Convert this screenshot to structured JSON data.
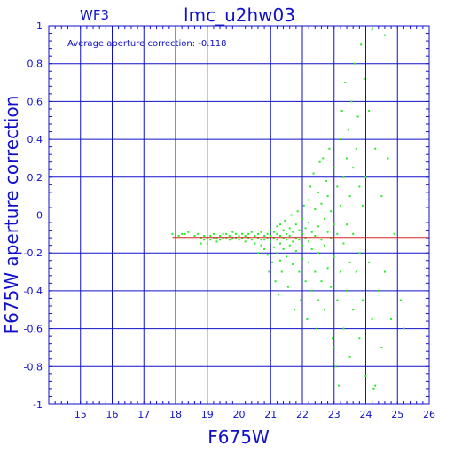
{
  "chart_data": {
    "type": "scatter",
    "title": "lmc_u2hw03",
    "subtitle": "WF3",
    "annotation": "Average aperture correction: -0.118",
    "xlabel": "F675W",
    "ylabel": "F675W aperture correction",
    "xlim": [
      14,
      26
    ],
    "ylim": [
      -1,
      1
    ],
    "xticks": [
      "15",
      "16",
      "17",
      "18",
      "19",
      "20",
      "21",
      "22",
      "23",
      "24",
      "25",
      "26"
    ],
    "yticks": [
      "1",
      "0.8",
      "0.6",
      "0.4",
      "0.2",
      "0",
      "-0.2",
      "-0.4",
      "-0.6",
      "-0.8",
      "-1"
    ],
    "grid": true,
    "reference_line": -0.118,
    "colors": {
      "axis": "#1010c8",
      "grid": "#1010c8",
      "points": "#22ee22",
      "reference": "#dd2222"
    },
    "points": [
      [
        17.9,
        -0.1
      ],
      [
        18.0,
        -0.09
      ],
      [
        18.1,
        -0.11
      ],
      [
        18.2,
        -0.1
      ],
      [
        18.3,
        -0.1
      ],
      [
        18.4,
        -0.09
      ],
      [
        18.6,
        -0.11
      ],
      [
        18.7,
        -0.1
      ],
      [
        18.8,
        -0.12
      ],
      [
        18.8,
        -0.15
      ],
      [
        18.9,
        -0.11
      ],
      [
        18.9,
        -0.13
      ],
      [
        19.0,
        -0.12
      ],
      [
        19.0,
        -0.15
      ],
      [
        19.1,
        -0.11
      ],
      [
        19.1,
        -0.13
      ],
      [
        19.2,
        -0.1
      ],
      [
        19.2,
        -0.12
      ],
      [
        19.3,
        -0.12
      ],
      [
        19.3,
        -0.14
      ],
      [
        19.4,
        -0.11
      ],
      [
        19.4,
        -0.13
      ],
      [
        19.5,
        -0.1
      ],
      [
        19.5,
        -0.12
      ],
      [
        19.6,
        -0.12
      ],
      [
        19.6,
        -0.1
      ],
      [
        19.7,
        -0.11
      ],
      [
        19.7,
        -0.13
      ],
      [
        19.8,
        -0.09
      ],
      [
        19.8,
        -0.12
      ],
      [
        19.9,
        -0.1
      ],
      [
        19.9,
        -0.12
      ],
      [
        20.0,
        -0.11
      ],
      [
        20.0,
        -0.13
      ],
      [
        20.1,
        -0.1
      ],
      [
        20.1,
        -0.12
      ],
      [
        20.2,
        -0.11
      ],
      [
        20.2,
        -0.14
      ],
      [
        20.3,
        -0.1
      ],
      [
        20.3,
        -0.12
      ],
      [
        20.4,
        -0.09
      ],
      [
        20.4,
        -0.13
      ],
      [
        20.5,
        -0.11
      ],
      [
        20.5,
        -0.15
      ],
      [
        20.6,
        -0.1
      ],
      [
        20.6,
        -0.12
      ],
      [
        20.6,
        -0.2
      ],
      [
        20.7,
        -0.13
      ],
      [
        20.7,
        -0.09
      ],
      [
        20.7,
        -0.16
      ],
      [
        20.8,
        -0.11
      ],
      [
        20.8,
        -0.13
      ],
      [
        20.8,
        -0.18
      ],
      [
        20.9,
        -0.1
      ],
      [
        20.9,
        -0.12
      ],
      [
        20.9,
        -0.21
      ],
      [
        20.95,
        -0.3
      ],
      [
        21.0,
        -0.08
      ],
      [
        21.0,
        -0.11
      ],
      [
        21.0,
        -0.14
      ],
      [
        21.05,
        -0.25
      ],
      [
        21.1,
        -0.09
      ],
      [
        21.1,
        -0.12
      ],
      [
        21.1,
        -0.17
      ],
      [
        21.15,
        -0.35
      ],
      [
        21.2,
        -0.06
      ],
      [
        21.2,
        -0.1
      ],
      [
        21.2,
        -0.13
      ],
      [
        21.2,
        -0.2
      ],
      [
        21.25,
        -0.42
      ],
      [
        21.3,
        -0.05
      ],
      [
        21.3,
        -0.11
      ],
      [
        21.3,
        -0.15
      ],
      [
        21.3,
        -0.24
      ],
      [
        21.35,
        -0.3
      ],
      [
        21.4,
        -0.08
      ],
      [
        21.4,
        -0.12
      ],
      [
        21.4,
        -0.18
      ],
      [
        21.45,
        -0.03
      ],
      [
        21.5,
        -0.1
      ],
      [
        21.5,
        -0.13
      ],
      [
        21.5,
        -0.22
      ],
      [
        21.55,
        -0.38
      ],
      [
        21.6,
        -0.07
      ],
      [
        21.6,
        -0.11
      ],
      [
        21.6,
        -0.16
      ],
      [
        21.65,
        0.0
      ],
      [
        21.7,
        -0.09
      ],
      [
        21.7,
        -0.14
      ],
      [
        21.7,
        -0.26
      ],
      [
        21.75,
        -0.5
      ],
      [
        21.8,
        -0.05
      ],
      [
        21.8,
        -0.12
      ],
      [
        21.8,
        -0.19
      ],
      [
        21.85,
        0.02
      ],
      [
        21.9,
        -0.08
      ],
      [
        21.9,
        -0.13
      ],
      [
        21.9,
        -0.3
      ],
      [
        21.95,
        -0.45
      ],
      [
        22.0,
        -0.02
      ],
      [
        22.0,
        -0.1
      ],
      [
        22.0,
        -0.16
      ],
      [
        22.0,
        -0.23
      ],
      [
        22.05,
        0.05
      ],
      [
        22.1,
        -0.07
      ],
      [
        22.1,
        -0.12
      ],
      [
        22.1,
        -0.35
      ],
      [
        22.15,
        -0.55
      ],
      [
        22.2,
        0.08
      ],
      [
        22.2,
        -0.04
      ],
      [
        22.2,
        -0.14
      ],
      [
        22.2,
        -0.25
      ],
      [
        22.25,
        0.15
      ],
      [
        22.3,
        -0.09
      ],
      [
        22.3,
        -0.18
      ],
      [
        22.3,
        -0.4
      ],
      [
        22.35,
        0.22
      ],
      [
        22.4,
        0.03
      ],
      [
        22.4,
        -0.11
      ],
      [
        22.4,
        -0.3
      ],
      [
        22.45,
        -0.6
      ],
      [
        22.5,
        0.12
      ],
      [
        22.5,
        -0.06
      ],
      [
        22.5,
        -0.2
      ],
      [
        22.5,
        -0.45
      ],
      [
        22.55,
        0.28
      ],
      [
        22.6,
        0.06
      ],
      [
        22.6,
        -0.13
      ],
      [
        22.6,
        -0.35
      ],
      [
        22.65,
        0.3
      ],
      [
        22.7,
        -0.02
      ],
      [
        22.7,
        -0.16
      ],
      [
        22.7,
        -0.5
      ],
      [
        22.75,
        0.18
      ],
      [
        22.8,
        0.1
      ],
      [
        22.8,
        -0.09
      ],
      [
        22.8,
        -0.28
      ],
      [
        22.85,
        0.35
      ],
      [
        22.9,
        0.02
      ],
      [
        22.9,
        -0.12
      ],
      [
        22.9,
        -0.38
      ],
      [
        22.95,
        -0.65
      ],
      [
        23.0,
        0.25
      ],
      [
        23.0,
        -0.05
      ],
      [
        23.0,
        -0.22
      ],
      [
        23.0,
        -0.7
      ],
      [
        23.05,
        -0.8
      ],
      [
        23.1,
        0.15
      ],
      [
        23.1,
        -0.1
      ],
      [
        23.1,
        -0.45
      ],
      [
        23.15,
        -0.9
      ],
      [
        23.2,
        0.4
      ],
      [
        23.2,
        0.05
      ],
      [
        23.2,
        -0.3
      ],
      [
        23.25,
        0.55
      ],
      [
        23.3,
        0.2
      ],
      [
        23.3,
        -0.15
      ],
      [
        23.3,
        -0.6
      ],
      [
        23.35,
        0.7
      ],
      [
        23.4,
        0.3
      ],
      [
        23.4,
        -0.05
      ],
      [
        23.4,
        -0.4
      ],
      [
        23.45,
        0.45
      ],
      [
        23.5,
        0.1
      ],
      [
        23.5,
        -0.25
      ],
      [
        23.5,
        -0.75
      ],
      [
        23.55,
        0.6
      ],
      [
        23.6,
        0.25
      ],
      [
        23.6,
        -0.1
      ],
      [
        23.6,
        -0.5
      ],
      [
        23.65,
        0.8
      ],
      [
        23.7,
        0.35
      ],
      [
        23.7,
        -0.3
      ],
      [
        23.75,
        0.52
      ],
      [
        23.8,
        0.15
      ],
      [
        23.8,
        -0.2
      ],
      [
        23.8,
        -0.65
      ],
      [
        23.85,
        0.9
      ],
      [
        23.9,
        0.05
      ],
      [
        23.9,
        -0.45
      ],
      [
        24.0,
        0.2
      ],
      [
        24.0,
        -0.85
      ],
      [
        24.1,
        0.55
      ],
      [
        24.1,
        -0.25
      ],
      [
        24.2,
        -0.55
      ],
      [
        24.2,
        0.98
      ],
      [
        24.3,
        0.35
      ],
      [
        24.3,
        -0.9
      ],
      [
        24.4,
        -0.4
      ],
      [
        24.5,
        0.1
      ],
      [
        24.5,
        -0.7
      ],
      [
        24.6,
        0.95
      ],
      [
        24.6,
        -0.3
      ],
      [
        24.7,
        0.3
      ],
      [
        24.8,
        -0.55
      ],
      [
        24.9,
        -0.1
      ],
      [
        25.1,
        -0.45
      ],
      [
        25.2,
        -0.6
      ],
      [
        23.95,
        0.72
      ],
      [
        24.25,
        -0.92
      ]
    ]
  }
}
